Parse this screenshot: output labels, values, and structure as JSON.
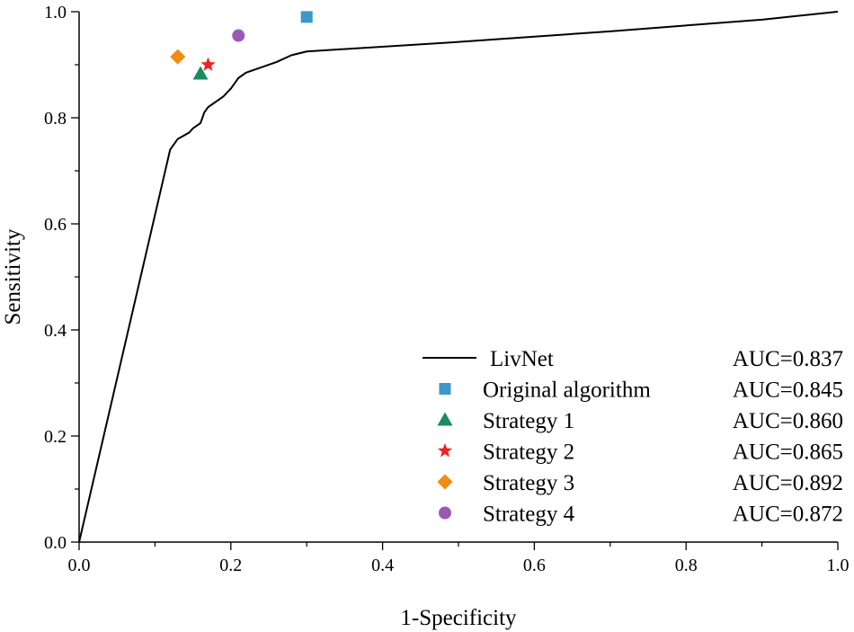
{
  "chart_data": {
    "type": "line",
    "title": "",
    "xlabel": "1-Specificity",
    "ylabel": "Sensitivity",
    "xlim": [
      0,
      1
    ],
    "ylim": [
      0,
      1
    ],
    "xticks": [
      "0.0",
      "0.2",
      "0.4",
      "0.6",
      "0.8",
      "1.0"
    ],
    "yticks": [
      "0.0",
      "0.2",
      "0.4",
      "0.6",
      "0.8",
      "1.0"
    ],
    "grid": false,
    "legend_position": "bottom-right",
    "curve": {
      "name": "LivNet",
      "auc_label": "AUC=0.837",
      "color": "#000000",
      "x": [
        0.0,
        0.12,
        0.13,
        0.14,
        0.145,
        0.15,
        0.16,
        0.165,
        0.17,
        0.175,
        0.18,
        0.19,
        0.2,
        0.205,
        0.21,
        0.22,
        0.24,
        0.26,
        0.28,
        0.3,
        0.5,
        0.7,
        0.9,
        1.0
      ],
      "y": [
        0.0,
        0.74,
        0.76,
        0.768,
        0.772,
        0.78,
        0.79,
        0.81,
        0.82,
        0.825,
        0.83,
        0.84,
        0.855,
        0.865,
        0.875,
        0.885,
        0.895,
        0.905,
        0.918,
        0.925,
        0.943,
        0.963,
        0.985,
        1.0
      ]
    },
    "points": [
      {
        "name": "Original algorithm",
        "auc_label": "AUC=0.845",
        "marker": "square",
        "color": "#3b97c9",
        "x": 0.3,
        "y": 0.99
      },
      {
        "name": "Strategy 1",
        "auc_label": "AUC=0.860",
        "marker": "triangle",
        "color": "#1a8a5f",
        "x": 0.16,
        "y": 0.883
      },
      {
        "name": "Strategy 2",
        "auc_label": "AUC=0.865",
        "marker": "star",
        "color": "#ee2222",
        "x": 0.17,
        "y": 0.9
      },
      {
        "name": "Strategy 3",
        "auc_label": "AUC=0.892",
        "marker": "diamond",
        "color": "#f08c12",
        "x": 0.13,
        "y": 0.915
      },
      {
        "name": "Strategy 4",
        "auc_label": "AUC=0.872",
        "marker": "circle",
        "color": "#9b59b6",
        "x": 0.21,
        "y": 0.955
      }
    ]
  }
}
